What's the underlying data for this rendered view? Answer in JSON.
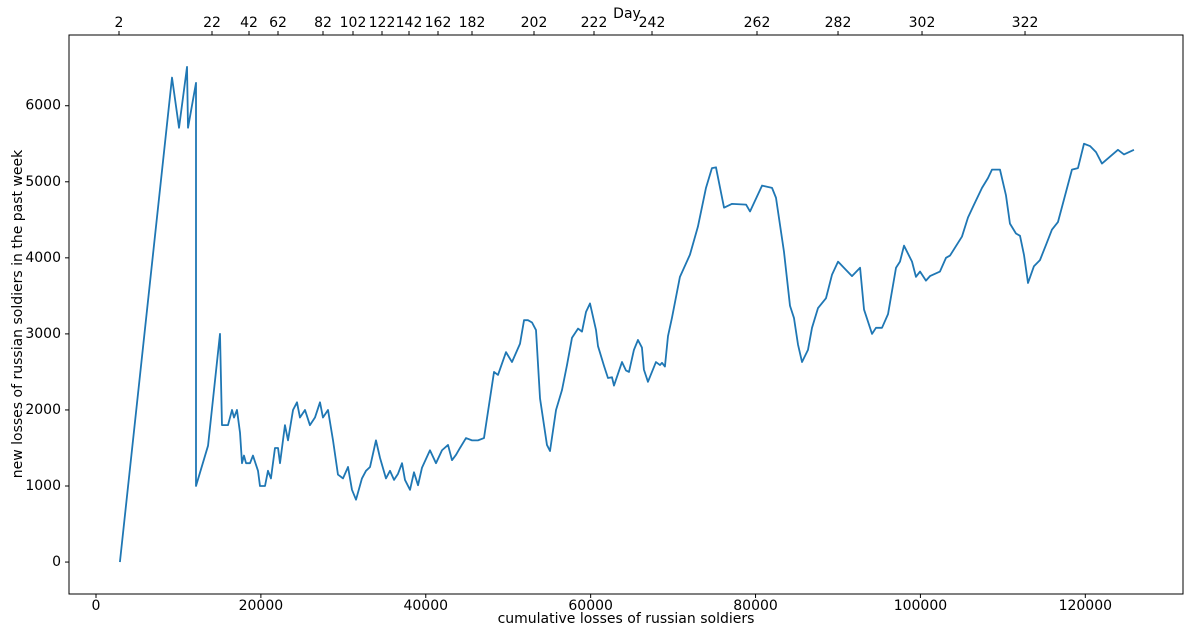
{
  "chart_data": {
    "type": "line",
    "xlabel": "cumulative losses of russian soldiers",
    "ylabel": "new losses of russian soldiers in the past week",
    "x2label": "Day",
    "color": "#1f77b4",
    "xlim": [
      -3275,
      131850
    ],
    "ylim": [
      -420,
      6930
    ],
    "xticks": [
      0,
      20000,
      40000,
      60000,
      80000,
      100000,
      120000
    ],
    "yticks": [
      0,
      1000,
      2000,
      3000,
      4000,
      5000,
      6000
    ],
    "x2ticks": [
      {
        "value": 2790,
        "label": "2"
      },
      {
        "value": 14071,
        "label": "22"
      },
      {
        "value": 18559,
        "label": "42"
      },
      {
        "value": 22077,
        "label": "62"
      },
      {
        "value": 27535,
        "label": "82"
      },
      {
        "value": 31174,
        "label": "102"
      },
      {
        "value": 34692,
        "label": "122"
      },
      {
        "value": 37967,
        "label": "142"
      },
      {
        "value": 41485,
        "label": "162"
      },
      {
        "value": 45609,
        "label": "182"
      },
      {
        "value": 53129,
        "label": "202"
      },
      {
        "value": 60407,
        "label": "222"
      },
      {
        "value": 67443,
        "label": "242"
      },
      {
        "value": 80179,
        "label": "262"
      },
      {
        "value": 90005,
        "label": "282"
      },
      {
        "value": 100194,
        "label": "302"
      },
      {
        "value": 112688,
        "label": "322"
      }
    ],
    "x": [
      2900,
      9220,
      10070,
      11040,
      11160,
      12130,
      12130,
      13590,
      15040,
      15280,
      16010,
      16500,
      16740,
      17100,
      17470,
      17710,
      17950,
      18200,
      18680,
      19040,
      19650,
      19890,
      20500,
      20860,
      21220,
      21710,
      22080,
      22320,
      22920,
      23290,
      23900,
      24380,
      24740,
      25350,
      25950,
      26560,
      27170,
      27530,
      28140,
      28750,
      29350,
      29960,
      30570,
      31050,
      31540,
      32260,
      32750,
      33240,
      33960,
      34450,
      35170,
      35660,
      36150,
      36630,
      37120,
      37480,
      38090,
      38570,
      39060,
      39540,
      40510,
      41240,
      41970,
      42700,
      43180,
      43670,
      44150,
      44880,
      45610,
      46330,
      47060,
      48280,
      48760,
      49730,
      50460,
      51430,
      51920,
      52400,
      52890,
      53370,
      53860,
      54700,
      55070,
      55800,
      56520,
      57130,
      57740,
      58470,
      58950,
      59440,
      59920,
      60650,
      60890,
      61620,
      62100,
      62590,
      62830,
      63800,
      64280,
      64650,
      65250,
      65740,
      66220,
      66460,
      66950,
      67920,
      68410,
      68650,
      69010,
      69380,
      69860,
      70830,
      72040,
      73010,
      73990,
      74710,
      75200,
      76180,
      77150,
      78850,
      79330,
      80790,
      82000,
      82480,
      83450,
      84180,
      84660,
      85150,
      85640,
      86360,
      86850,
      87580,
      88550,
      89280,
      90010,
      90980,
      91700,
      92680,
      93160,
      94130,
      94610,
      95340,
      96070,
      97040,
      97520,
      98010,
      98980,
      99460,
      99950,
      100670,
      101160,
      102370,
      103100,
      103590,
      105040,
      105770,
      106500,
      107470,
      108200,
      108680,
      109650,
      110380,
      110860,
      111590,
      112080,
      112560,
      113050,
      113770,
      114500,
      115230,
      115950,
      116680,
      118380,
      119110,
      119840,
      120570,
      121300,
      122020,
      122990,
      123960,
      124690,
      125900
    ],
    "values": [
      0,
      6370,
      5710,
      6510,
      5710,
      6300,
      1000,
      1530,
      3000,
      1800,
      1800,
      2000,
      1900,
      2000,
      1700,
      1300,
      1400,
      1300,
      1300,
      1400,
      1200,
      1000,
      1000,
      1200,
      1100,
      1500,
      1500,
      1300,
      1800,
      1600,
      2000,
      2100,
      1900,
      2000,
      1800,
      1900,
      2100,
      1900,
      2000,
      1600,
      1150,
      1100,
      1250,
      950,
      820,
      1100,
      1200,
      1250,
      1600,
      1370,
      1100,
      1200,
      1080,
      1160,
      1300,
      1080,
      950,
      1180,
      1010,
      1240,
      1470,
      1300,
      1470,
      1540,
      1340,
      1410,
      1500,
      1630,
      1600,
      1600,
      1630,
      2500,
      2460,
      2760,
      2630,
      2870,
      3180,
      3180,
      3150,
      3050,
      2150,
      1540,
      1460,
      2000,
      2260,
      2590,
      2950,
      3070,
      3030,
      3290,
      3400,
      3050,
      2840,
      2580,
      2420,
      2430,
      2320,
      2630,
      2520,
      2500,
      2790,
      2920,
      2820,
      2530,
      2370,
      2630,
      2590,
      2620,
      2570,
      2970,
      3210,
      3750,
      4040,
      4410,
      4920,
      5180,
      5190,
      4660,
      4710,
      4700,
      4610,
      4950,
      4920,
      4790,
      4080,
      3370,
      3210,
      2860,
      2630,
      2790,
      3080,
      3340,
      3470,
      3780,
      3950,
      3840,
      3760,
      3870,
      3320,
      3000,
      3080,
      3080,
      3260,
      3870,
      3950,
      4160,
      3950,
      3750,
      3820,
      3700,
      3760,
      3820,
      4000,
      4030,
      4280,
      4530,
      4700,
      4920,
      5050,
      5160,
      5160,
      4820,
      4450,
      4320,
      4290,
      4040,
      3670,
      3890,
      3970,
      4170,
      4370,
      4470,
      5160,
      5180,
      5500,
      5470,
      5390,
      5240,
      5330,
      5420,
      5360,
      5420
    ]
  }
}
